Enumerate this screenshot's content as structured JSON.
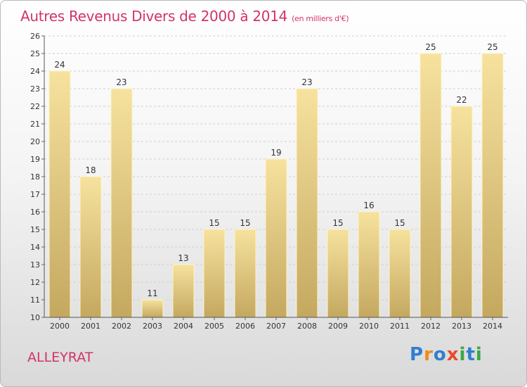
{
  "title": "Autres Revenus Divers de 2000 à 2014",
  "subtitle": "(en milliers d'€)",
  "location_label": "ALLEYRAT",
  "logo": {
    "text": "Proxiti",
    "letters": [
      {
        "ch": "P",
        "color": "#2f7fd0"
      },
      {
        "ch": "r",
        "color": "#f08a1c"
      },
      {
        "ch": "o",
        "color": "#2f7fd0"
      },
      {
        "ch": "x",
        "color": "#e94a2a"
      },
      {
        "ch": "i",
        "color": "#3aa845"
      },
      {
        "ch": "t",
        "color": "#2f7fd0"
      },
      {
        "ch": "i",
        "color": "#3aa845"
      }
    ]
  },
  "colors": {
    "accent": "#d2336a",
    "bar_light": "#f5df98",
    "bar_dark": "#c4a860"
  },
  "chart_data": {
    "type": "bar",
    "categories": [
      "2000",
      "2001",
      "2002",
      "2003",
      "2004",
      "2005",
      "2006",
      "2007",
      "2008",
      "2009",
      "2010",
      "2011",
      "2012",
      "2013",
      "2014"
    ],
    "values": [
      24,
      18,
      23,
      11,
      13,
      15,
      15,
      19,
      23,
      15,
      16,
      15,
      25,
      22,
      25
    ],
    "title": "Autres Revenus Divers de 2000 à 2014",
    "xlabel": "",
    "ylabel": "",
    "ylim": [
      10,
      26
    ],
    "yticks": [
      10,
      11,
      12,
      13,
      14,
      15,
      16,
      17,
      18,
      19,
      20,
      21,
      22,
      23,
      24,
      25,
      26
    ],
    "grid": true,
    "data_labels": true
  }
}
